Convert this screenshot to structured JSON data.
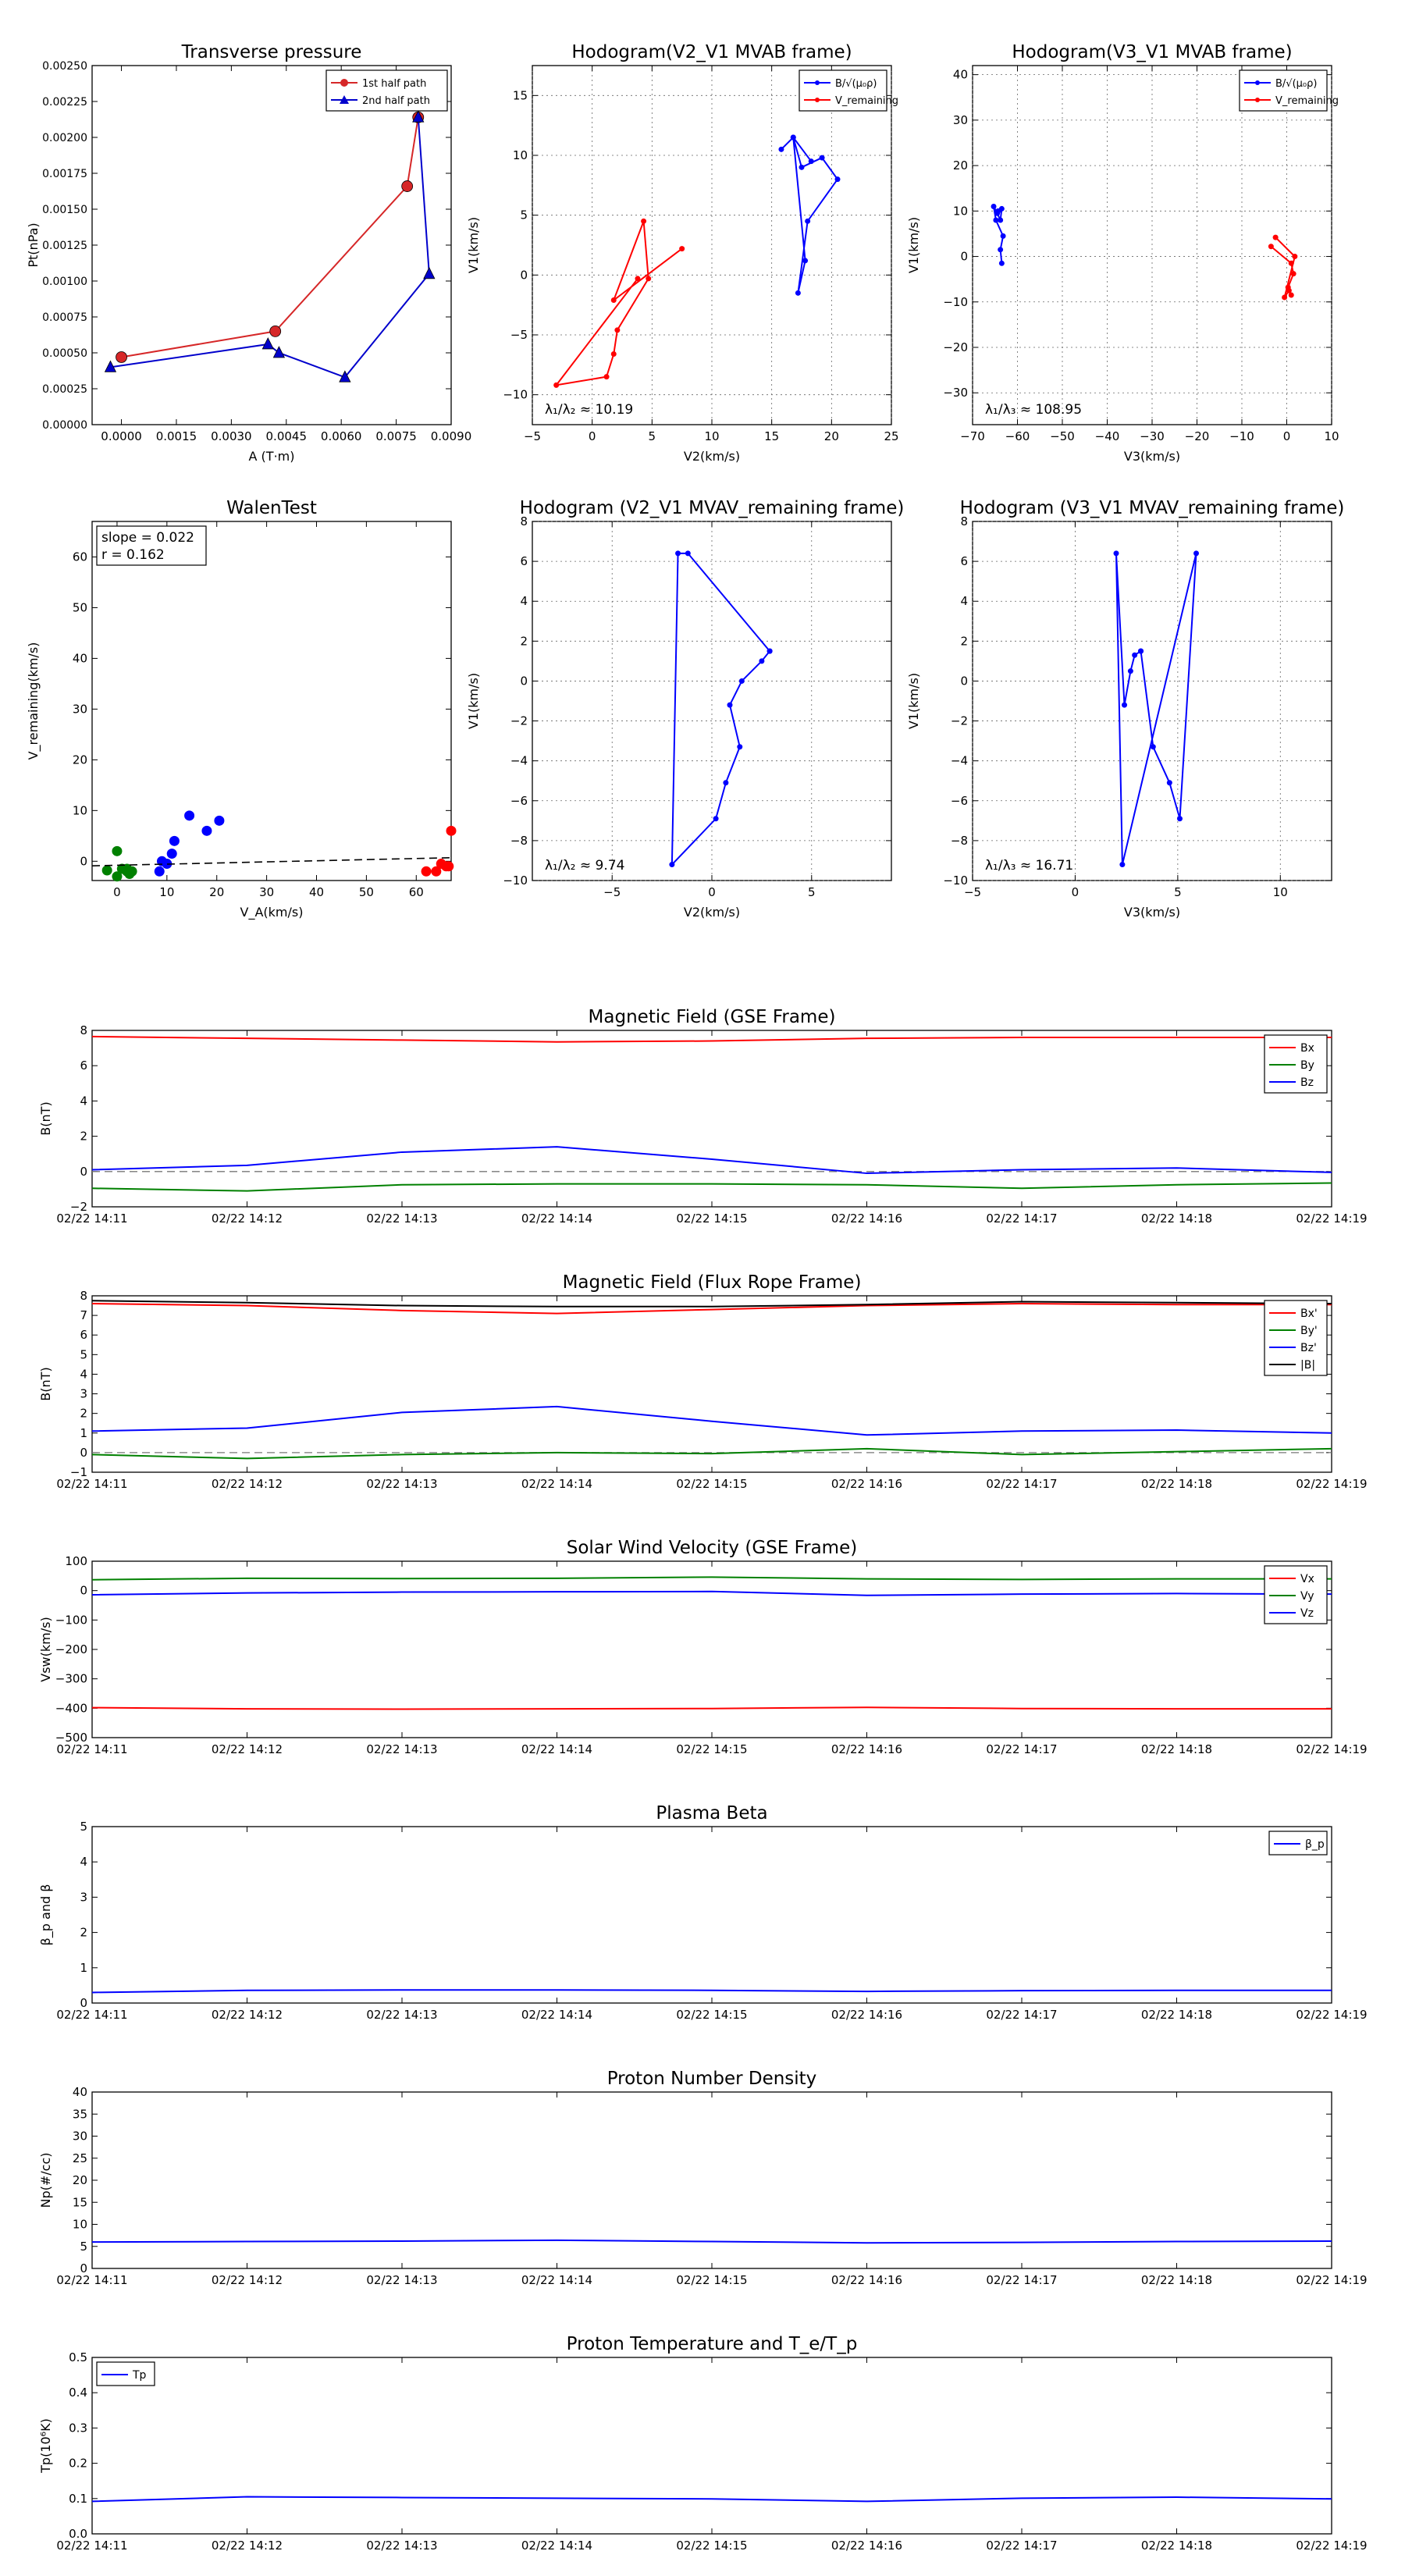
{
  "panels": {
    "tp": {
      "title": "Transverse pressure",
      "xlabel": "A (T·m)",
      "ylabel": "Pt(nPa)",
      "xlim": [
        -0.0008,
        0.009
      ],
      "ylim": [
        0,
        0.0025
      ],
      "xticks": [
        "0.0000",
        "0.0015",
        "0.0030",
        "0.0045",
        "0.0060",
        "0.0075",
        "0.0090"
      ],
      "yticks": [
        "0.00000",
        "0.00025",
        "0.00050",
        "0.00075",
        "0.00100",
        "0.00125",
        "0.00150",
        "0.00175",
        "0.00200",
        "0.00225",
        "0.00250"
      ],
      "legend": [
        "1st half path",
        "2nd half path"
      ]
    },
    "h1": {
      "title": "Hodogram(V2_V1 MVAB frame)",
      "xlabel": "V2(km/s)",
      "ylabel": "V1(km/s)",
      "xticks": [
        "−5",
        "0",
        "5",
        "10",
        "15",
        "20",
        "25"
      ],
      "yticks": [
        "−10",
        "−5",
        "0",
        "5",
        "10",
        "15"
      ],
      "legend": [
        "B/√(μ₀ρ)",
        "V_remaining"
      ],
      "annotation": "λ₁/λ₂ ≈ 10.19"
    },
    "h2": {
      "title": "Hodogram(V3_V1 MVAB frame)",
      "xlabel": "V3(km/s)",
      "ylabel": "V1(km/s)",
      "xticks": [
        "−70",
        "−60",
        "−50",
        "−40",
        "−30",
        "−20",
        "−10",
        "0",
        "10"
      ],
      "yticks": [
        "−30",
        "−20",
        "−10",
        "0",
        "10",
        "20",
        "30",
        "40"
      ],
      "legend": [
        "B/√(μ₀ρ)",
        "V_remaining"
      ],
      "annotation": "λ₁/λ₃ ≈ 108.95"
    },
    "walen": {
      "title": "WalenTest",
      "xlabel": "V_A(km/s)",
      "ylabel": "V_remaining(km/s)",
      "xticks": [
        "0",
        "10",
        "20",
        "30",
        "40",
        "50",
        "60"
      ],
      "yticks": [
        "0",
        "10",
        "20",
        "30",
        "40",
        "50",
        "60"
      ],
      "stat1": "slope = 0.022",
      "stat2": "r = 0.162"
    },
    "h3": {
      "title": "Hodogram (V2_V1 MVAV_remaining frame)",
      "xlabel": "V2(km/s)",
      "ylabel": "V1(km/s)",
      "xticks": [
        "−5",
        "0",
        "5"
      ],
      "yticks": [
        "−10",
        "−8",
        "−6",
        "−4",
        "−2",
        "0",
        "2",
        "4",
        "6",
        "8"
      ],
      "annotation": "λ₁/λ₂ ≈ 9.74"
    },
    "h4": {
      "title": "Hodogram (V3_V1 MVAV_remaining frame)",
      "xlabel": "V3(km/s)",
      "ylabel": "V1(km/s)",
      "xticks": [
        "−5",
        "0",
        "5",
        "10"
      ],
      "yticks": [
        "−10",
        "−8",
        "−6",
        "−4",
        "−2",
        "0",
        "2",
        "4",
        "6",
        "8"
      ],
      "annotation": "λ₁/λ₃ ≈ 16.71"
    },
    "time_ticks": [
      "02/22 14:11",
      "02/22 14:12",
      "02/22 14:13",
      "02/22 14:14",
      "02/22 14:15",
      "02/22 14:16",
      "02/22 14:17",
      "02/22 14:18",
      "02/22 14:19"
    ],
    "mf_gse": {
      "title": "Magnetic Field (GSE Frame)",
      "ylabel": "B(nT)",
      "yticks": [
        "−2",
        "0",
        "2",
        "4",
        "6",
        "8"
      ],
      "legend": [
        "Bx",
        "By",
        "Bz"
      ]
    },
    "mf_fr": {
      "title": "Magnetic Field (Flux Rope Frame)",
      "ylabel": "B(nT)",
      "yticks": [
        "−1",
        "0",
        "1",
        "2",
        "3",
        "4",
        "5",
        "6",
        "7",
        "8"
      ],
      "legend": [
        "Bx'",
        "By'",
        "Bz'",
        "|B|"
      ]
    },
    "vsw": {
      "title": "Solar Wind Velocity (GSE Frame)",
      "ylabel": "Vsw(km/s)",
      "yticks": [
        "−500",
        "−400",
        "−300",
        "−200",
        "−100",
        "0",
        "100"
      ],
      "legend": [
        "Vx",
        "Vy",
        "Vz"
      ]
    },
    "beta": {
      "title": "Plasma Beta",
      "ylabel": "β_p and β",
      "yticks": [
        "0",
        "1",
        "2",
        "3",
        "4",
        "5"
      ],
      "legend": [
        "β_p"
      ]
    },
    "np": {
      "title": "Proton Number Density",
      "ylabel": "Np(#/cc)",
      "yticks": [
        "0",
        "5",
        "10",
        "15",
        "20",
        "25",
        "30",
        "35",
        "40"
      ]
    },
    "tpr": {
      "title": "Proton Temperature and T_e/T_p",
      "ylabel": "Tp(10⁶K)",
      "yticks": [
        "0.0",
        "0.1",
        "0.2",
        "0.3",
        "0.4",
        "0.5"
      ],
      "legend": [
        "Tp"
      ]
    }
  },
  "chart_data": [
    {
      "type": "line",
      "title": "Transverse pressure",
      "xlabel": "A (T·m)",
      "ylabel": "Pt(nPa)",
      "xlim": [
        -0.0008,
        0.009
      ],
      "ylim": [
        0,
        0.0025
      ],
      "series": [
        {
          "name": "1st half path",
          "color": "#d62728",
          "marker": "circle",
          "x": [
            0.0,
            0.0042,
            0.0078,
            0.0081
          ],
          "y": [
            0.00047,
            0.00065,
            0.00166,
            0.00214
          ]
        },
        {
          "name": "2nd half path",
          "color": "#0000cc",
          "marker": "triangle",
          "x": [
            0.0081,
            0.0084,
            0.0061,
            0.0043,
            0.004,
            -0.0003
          ],
          "y": [
            0.00214,
            0.00105,
            0.00033,
            0.0005,
            0.00056,
            0.0004
          ]
        }
      ]
    },
    {
      "type": "line",
      "title": "Hodogram(V2_V1 MVAB frame)",
      "xlabel": "V2(km/s)",
      "ylabel": "V1(km/s)",
      "xlim": [
        -5,
        25
      ],
      "ylim": [
        -12.5,
        17.5
      ],
      "series": [
        {
          "name": "B/√(μ₀ρ)",
          "color": "#0000ff",
          "x": [
            15.8,
            16.8,
            17.5,
            19.2,
            20.5,
            18,
            17.2,
            17.8,
            16.8,
            18.3
          ],
          "y": [
            10.5,
            11.5,
            9,
            9.8,
            8,
            4.5,
            -1.5,
            1.2,
            11.5,
            9.5
          ]
        },
        {
          "name": "V_remaining",
          "color": "#ff0000",
          "x": [
            7.5,
            1.8,
            4.3,
            4.7,
            2.1,
            1.8,
            1.2,
            -3,
            3.8
          ],
          "y": [
            2.2,
            -2.1,
            4.5,
            -0.3,
            -4.6,
            -6.6,
            -8.5,
            -9.2,
            -0.3
          ]
        }
      ]
    },
    {
      "type": "line",
      "title": "Hodogram(V3_V1 MVAB frame)",
      "xlabel": "V3(km/s)",
      "ylabel": "V1(km/s)",
      "xlim": [
        -70,
        10
      ],
      "ylim": [
        -37,
        42
      ],
      "series": [
        {
          "name": "B/√(μ₀ρ)",
          "color": "#0000ff",
          "x": [
            -63.5,
            -63.8,
            -63.2,
            -64.8,
            -65.3,
            -64.5,
            -63.8,
            -63.5,
            -64.3
          ],
          "y": [
            -1.5,
            1.5,
            4.5,
            8,
            11,
            9.5,
            8,
            10.5,
            10
          ]
        },
        {
          "name": "V_remaining",
          "color": "#ff0000",
          "x": [
            -3.5,
            1,
            1.5,
            0.3,
            1,
            0.5,
            -0.5,
            1.8,
            -2.5
          ],
          "y": [
            2.2,
            -1.5,
            -3.8,
            -6.8,
            -8.5,
            -7.5,
            -9,
            0,
            4.2
          ]
        }
      ]
    },
    {
      "type": "scatter",
      "title": "WalenTest",
      "xlabel": "V_A(km/s)",
      "ylabel": "V_remaining(km/s)",
      "xlim": [
        -5,
        67
      ],
      "ylim": [
        -3.8,
        67
      ],
      "slope": 0.022,
      "r": 0.162,
      "fit_line": {
        "x": [
          -5,
          67
        ],
        "y": [
          -0.9,
          0.7
        ]
      },
      "series": [
        {
          "name": "green",
          "color": "#008000",
          "x": [
            -2,
            0,
            1,
            2,
            3,
            0,
            2,
            2.5
          ],
          "y": [
            -1.8,
            2,
            -1.5,
            -1.5,
            -2,
            -3,
            -2,
            -2.5
          ]
        },
        {
          "name": "blue",
          "color": "#0000ff",
          "x": [
            8.5,
            9,
            10,
            11,
            11.5,
            14.5,
            18,
            20.5
          ],
          "y": [
            -2,
            0,
            -0.5,
            1.5,
            4,
            9,
            6,
            8
          ]
        },
        {
          "name": "red",
          "color": "#ff0000",
          "x": [
            62,
            64,
            65,
            66,
            66.5,
            67
          ],
          "y": [
            -2,
            -2,
            -0.5,
            -1,
            -1,
            6
          ]
        }
      ]
    },
    {
      "type": "line",
      "title": "Hodogram (V2_V1 MVAV_remaining frame)",
      "xlabel": "V2(km/s)",
      "ylabel": "V1(km/s)",
      "xlim": [
        -9,
        9
      ],
      "ylim": [
        -10,
        8
      ],
      "series": [
        {
          "color": "#0000ff",
          "x": [
            2.9,
            2.5,
            1.5,
            0.9,
            1.4,
            0.7,
            0.2,
            -2,
            -1.7,
            -1.2,
            2.9
          ],
          "y": [
            1.5,
            1,
            0,
            -1.2,
            -3.3,
            -5.1,
            -6.9,
            -9.2,
            6.4,
            6.4,
            1.5
          ]
        }
      ]
    },
    {
      "type": "line",
      "title": "Hodogram (V3_V1 MVAV_remaining frame)",
      "xlabel": "V3(km/s)",
      "ylabel": "V1(km/s)",
      "xlim": [
        -5,
        12.5
      ],
      "ylim": [
        -10,
        8
      ],
      "series": [
        {
          "color": "#0000ff",
          "x": [
            3.2,
            2.9,
            2.7,
            2.4,
            2,
            2.3,
            5.9,
            5.1,
            4.6,
            3.8,
            3.2
          ],
          "y": [
            1.5,
            1.3,
            0.5,
            -1.2,
            6.4,
            -9.2,
            6.4,
            -6.9,
            -5.1,
            -3.3,
            1.5
          ]
        }
      ]
    },
    {
      "type": "line",
      "title": "Magnetic Field (GSE Frame)",
      "ylabel": "B(nT)",
      "ylim": [
        -2,
        8
      ],
      "x": [
        "02/22 14:11",
        "02/22 14:12",
        "02/22 14:13",
        "02/22 14:14",
        "02/22 14:15",
        "02/22 14:16",
        "02/22 14:17",
        "02/22 14:18",
        "02/22 14:19"
      ],
      "series": [
        {
          "name": "Bx",
          "color": "#ff0000",
          "values": [
            7.65,
            7.55,
            7.45,
            7.35,
            7.4,
            7.55,
            7.6,
            7.6,
            7.6
          ]
        },
        {
          "name": "By",
          "color": "#008000",
          "values": [
            -0.95,
            -1.1,
            -0.75,
            -0.7,
            -0.7,
            -0.75,
            -0.95,
            -0.75,
            -0.65
          ]
        },
        {
          "name": "Bz",
          "color": "#0000ff",
          "values": [
            0.1,
            0.35,
            1.1,
            1.4,
            0.7,
            -0.1,
            0.1,
            0.2,
            -0.05
          ]
        }
      ]
    },
    {
      "type": "line",
      "title": "Magnetic Field (Flux Rope Frame)",
      "ylabel": "B(nT)",
      "ylim": [
        -1,
        8
      ],
      "x": [
        "02/22 14:11",
        "02/22 14:12",
        "02/22 14:13",
        "02/22 14:14",
        "02/22 14:15",
        "02/22 14:16",
        "02/22 14:17",
        "02/22 14:18",
        "02/22 14:19"
      ],
      "series": [
        {
          "name": "Bx'",
          "color": "#ff0000",
          "values": [
            7.6,
            7.5,
            7.25,
            7.1,
            7.3,
            7.5,
            7.6,
            7.55,
            7.55
          ]
        },
        {
          "name": "By'",
          "color": "#008000",
          "values": [
            -0.1,
            -0.3,
            -0.1,
            0,
            -0.05,
            0.2,
            -0.1,
            0.05,
            0.2
          ]
        },
        {
          "name": "Bz'",
          "color": "#0000ff",
          "values": [
            1.1,
            1.25,
            2.05,
            2.35,
            1.6,
            0.9,
            1.1,
            1.15,
            1
          ]
        },
        {
          "name": "|B|",
          "color": "#000000",
          "values": [
            7.75,
            7.65,
            7.5,
            7.45,
            7.45,
            7.55,
            7.7,
            7.65,
            7.6
          ]
        }
      ]
    },
    {
      "type": "line",
      "title": "Solar Wind Velocity (GSE Frame)",
      "ylabel": "Vsw(km/s)",
      "ylim": [
        -500,
        100
      ],
      "x": [
        "02/22 14:11",
        "02/22 14:12",
        "02/22 14:13",
        "02/22 14:14",
        "02/22 14:15",
        "02/22 14:16",
        "02/22 14:17",
        "02/22 14:18",
        "02/22 14:19"
      ],
      "series": [
        {
          "name": "Vx",
          "color": "#ff0000",
          "values": [
            -398,
            -402,
            -403,
            -402,
            -401,
            -397,
            -401,
            -402,
            -402
          ]
        },
        {
          "name": "Vy",
          "color": "#008000",
          "values": [
            37,
            42,
            41,
            42,
            46,
            40,
            38,
            40,
            40
          ]
        },
        {
          "name": "Vz",
          "color": "#0000ff",
          "values": [
            -14,
            -8,
            -5,
            -4,
            -3,
            -16,
            -12,
            -10,
            -12
          ]
        }
      ]
    },
    {
      "type": "line",
      "title": "Plasma Beta",
      "ylabel": "β_p and β",
      "ylim": [
        0,
        5
      ],
      "x": [
        "02/22 14:11",
        "02/22 14:12",
        "02/22 14:13",
        "02/22 14:14",
        "02/22 14:15",
        "02/22 14:16",
        "02/22 14:17",
        "02/22 14:18",
        "02/22 14:19"
      ],
      "series": [
        {
          "name": "β_p",
          "color": "#0000ff",
          "values": [
            0.3,
            0.36,
            0.37,
            0.37,
            0.36,
            0.33,
            0.35,
            0.36,
            0.36
          ]
        }
      ]
    },
    {
      "type": "line",
      "title": "Proton Number Density",
      "ylabel": "Np(#/cc)",
      "ylim": [
        0,
        40
      ],
      "x": [
        "02/22 14:11",
        "02/22 14:12",
        "02/22 14:13",
        "02/22 14:14",
        "02/22 14:15",
        "02/22 14:16",
        "02/22 14:17",
        "02/22 14:18",
        "02/22 14:19"
      ],
      "series": [
        {
          "color": "#0000ff",
          "values": [
            6,
            6.1,
            6.2,
            6.4,
            6.1,
            5.8,
            5.9,
            6.1,
            6.2
          ]
        }
      ]
    },
    {
      "type": "line",
      "title": "Proton Temperature and T_e/T_p",
      "ylabel": "Tp(10⁶K)",
      "ylim": [
        0,
        0.5
      ],
      "x": [
        "02/22 14:11",
        "02/22 14:12",
        "02/22 14:13",
        "02/22 14:14",
        "02/22 14:15",
        "02/22 14:16",
        "02/22 14:17",
        "02/22 14:18",
        "02/22 14:19"
      ],
      "series": [
        {
          "name": "Tp",
          "color": "#0000ff",
          "values": [
            0.092,
            0.105,
            0.103,
            0.101,
            0.099,
            0.092,
            0.101,
            0.104,
            0.099
          ]
        }
      ]
    }
  ]
}
